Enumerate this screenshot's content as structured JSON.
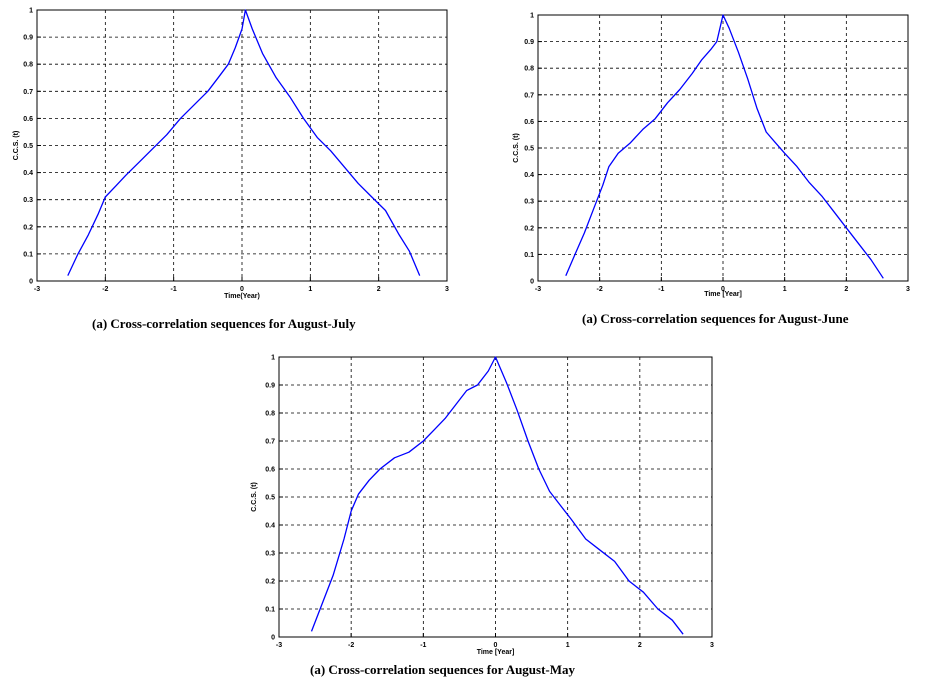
{
  "chart_data": [
    {
      "type": "line",
      "caption": "(a) Cross-correlation sequences for August-July",
      "xlabel": "Time(Year)",
      "ylabel": "C.C.S. (t)",
      "xlim": [
        -3,
        3
      ],
      "ylim": [
        0,
        1
      ],
      "grid": true,
      "xticks": [
        "-3",
        "-2",
        "-1",
        "0",
        "1",
        "2",
        "3"
      ],
      "yticks": [
        "0",
        "0.1",
        "0.2",
        "0.3",
        "0.4",
        "0.5",
        "0.6",
        "0.7",
        "0.8",
        "0.9",
        "1"
      ],
      "series": [
        {
          "color": "#0000ff",
          "x": [
            -2.55,
            -2.4,
            -2.25,
            -2.1,
            -2.0,
            -1.85,
            -1.7,
            -1.5,
            -1.3,
            -1.1,
            -0.9,
            -0.7,
            -0.5,
            -0.35,
            -0.2,
            -0.1,
            0.0,
            0.05,
            0.15,
            0.3,
            0.5,
            0.7,
            0.9,
            1.1,
            1.3,
            1.5,
            1.7,
            1.9,
            2.1,
            2.3,
            2.45,
            2.6
          ],
          "y": [
            0.02,
            0.1,
            0.17,
            0.25,
            0.31,
            0.35,
            0.39,
            0.44,
            0.49,
            0.54,
            0.6,
            0.65,
            0.7,
            0.75,
            0.8,
            0.86,
            0.93,
            1.0,
            0.93,
            0.84,
            0.75,
            0.68,
            0.6,
            0.53,
            0.48,
            0.42,
            0.36,
            0.31,
            0.26,
            0.17,
            0.11,
            0.02
          ]
        }
      ]
    },
    {
      "type": "line",
      "caption": "(a) Cross-correlation sequences for August-June",
      "xlabel": "Time [Year]",
      "ylabel": "C.C.S. (t)",
      "xlim": [
        -3,
        3
      ],
      "ylim": [
        0,
        1
      ],
      "grid": true,
      "xticks": [
        "-3",
        "-2",
        "-1",
        "0",
        "1",
        "2",
        "3"
      ],
      "yticks": [
        "0",
        "0.1",
        "0.2",
        "0.3",
        "0.4",
        "0.5",
        "0.6",
        "0.7",
        "0.8",
        "0.9",
        "1"
      ],
      "series": [
        {
          "color": "#0000ff",
          "x": [
            -2.55,
            -2.4,
            -2.25,
            -2.1,
            -1.95,
            -1.85,
            -1.7,
            -1.5,
            -1.3,
            -1.1,
            -0.9,
            -0.7,
            -0.5,
            -0.35,
            -0.2,
            -0.1,
            0.0,
            0.1,
            0.25,
            0.4,
            0.55,
            0.7,
            0.85,
            1.0,
            1.2,
            1.4,
            1.6,
            1.8,
            2.0,
            2.2,
            2.4,
            2.6
          ],
          "y": [
            0.02,
            0.1,
            0.18,
            0.27,
            0.36,
            0.43,
            0.48,
            0.52,
            0.57,
            0.61,
            0.67,
            0.72,
            0.78,
            0.83,
            0.87,
            0.9,
            1.0,
            0.95,
            0.86,
            0.76,
            0.65,
            0.56,
            0.52,
            0.48,
            0.43,
            0.37,
            0.32,
            0.26,
            0.2,
            0.14,
            0.08,
            0.01
          ]
        }
      ]
    },
    {
      "type": "line",
      "caption": "(a) Cross-correlation sequences for August-May",
      "xlabel": "Time [Year]",
      "ylabel": "C.C.S. (t)",
      "xlim": [
        -3,
        3
      ],
      "ylim": [
        0,
        1
      ],
      "grid": true,
      "xticks": [
        "-3",
        "-2",
        "-1",
        "0",
        "1",
        "2",
        "3"
      ],
      "yticks": [
        "0",
        "0.1",
        "0.2",
        "0.3",
        "0.4",
        "0.5",
        "0.6",
        "0.7",
        "0.8",
        "0.9",
        "1"
      ],
      "series": [
        {
          "color": "#0000ff",
          "x": [
            -2.55,
            -2.4,
            -2.25,
            -2.1,
            -2.0,
            -1.9,
            -1.75,
            -1.6,
            -1.4,
            -1.2,
            -1.0,
            -0.85,
            -0.7,
            -0.55,
            -0.4,
            -0.25,
            -0.1,
            0.0,
            0.15,
            0.3,
            0.45,
            0.6,
            0.75,
            0.9,
            1.05,
            1.25,
            1.45,
            1.65,
            1.85,
            2.05,
            2.25,
            2.45,
            2.6
          ],
          "y": [
            0.02,
            0.12,
            0.22,
            0.35,
            0.45,
            0.51,
            0.56,
            0.6,
            0.64,
            0.66,
            0.7,
            0.74,
            0.78,
            0.83,
            0.88,
            0.9,
            0.95,
            1.0,
            0.91,
            0.81,
            0.7,
            0.6,
            0.52,
            0.47,
            0.42,
            0.35,
            0.31,
            0.27,
            0.2,
            0.16,
            0.1,
            0.06,
            0.01
          ]
        }
      ]
    }
  ]
}
